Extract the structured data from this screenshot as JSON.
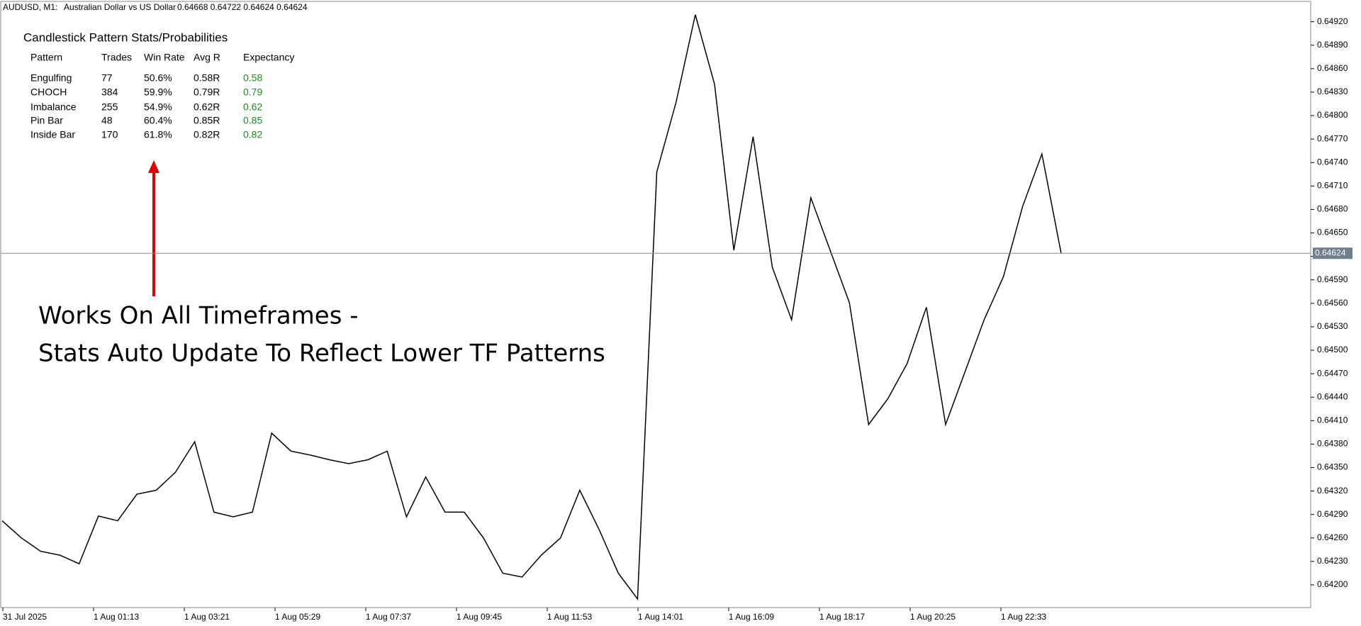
{
  "header": {
    "symbol": "AUDUSD, M1:",
    "description": "Australian Dollar vs US Dollar",
    "ohlc": "0.64668 0.64722 0.64624 0.64624"
  },
  "stats": {
    "title": "Candlestick Pattern Stats/Probabilities",
    "columns": [
      "Pattern",
      "Trades",
      "Win Rate",
      "Avg R",
      "Expectancy"
    ],
    "rows": [
      [
        "Engulfing",
        "77",
        "50.6%",
        "0.58R",
        "0.58"
      ],
      [
        "CHOCH",
        "384",
        "59.9%",
        "0.79R",
        "0.79"
      ],
      [
        "Imbalance",
        "255",
        "54.9%",
        "0.62R",
        "0.62"
      ],
      [
        "Pin Bar",
        "48",
        "60.4%",
        "0.85R",
        "0.85"
      ],
      [
        "Inside Bar",
        "170",
        "61.8%",
        "0.82R",
        "0.82"
      ]
    ]
  },
  "annotation": [
    "Works On All Timeframes -",
    "Stats Auto Update To Reflect Lower TF Patterns"
  ],
  "chart_data": {
    "type": "line",
    "color": "#000000",
    "x_labels": [
      "31 Jul 2025",
      "1 Aug 01:13",
      "1 Aug 03:21",
      "1 Aug 05:29",
      "1 Aug 07:37",
      "1 Aug 09:45",
      "1 Aug 11:53",
      "1 Aug 14:01",
      "1 Aug 16:09",
      "1 Aug 18:17",
      "1 Aug 20:25",
      "1 Aug 22:33"
    ],
    "values": [
      0.64282,
      0.6426,
      0.64243,
      0.64238,
      0.64227,
      0.64288,
      0.64282,
      0.64316,
      0.64321,
      0.64344,
      0.64383,
      0.64293,
      0.64287,
      0.64293,
      0.64394,
      0.64371,
      0.64366,
      0.6436,
      0.64355,
      0.6436,
      0.64371,
      0.64287,
      0.64338,
      0.64293,
      0.64293,
      0.6426,
      0.64215,
      0.6421,
      0.64238,
      0.6426,
      0.64321,
      0.64271,
      0.64215,
      0.64182,
      0.64728,
      0.64817,
      0.64929,
      0.6484,
      0.64628,
      0.64773,
      0.64606,
      0.64539,
      0.64695,
      0.64628,
      0.64561,
      0.64405,
      0.64438,
      0.64483,
      0.64555,
      0.64405,
      0.64472,
      0.64539,
      0.64594,
      0.64684,
      0.64751,
      0.64624
    ],
    "ylim": [
      0.64171,
      0.64946
    ],
    "yticks": [
      {
        "value": 0.642,
        "label": "0.64200"
      },
      {
        "value": 0.6423,
        "label": "0.64230"
      },
      {
        "value": 0.6426,
        "label": "0.64260"
      },
      {
        "value": 0.6429,
        "label": "0.64290"
      },
      {
        "value": 0.6432,
        "label": "0.64320"
      },
      {
        "value": 0.6435,
        "label": "0.64350"
      },
      {
        "value": 0.6438,
        "label": "0.64380"
      },
      {
        "value": 0.6441,
        "label": "0.64410"
      },
      {
        "value": 0.6444,
        "label": "0.64440"
      },
      {
        "value": 0.6447,
        "label": "0.64470"
      },
      {
        "value": 0.645,
        "label": "0.64500"
      },
      {
        "value": 0.6453,
        "label": "0.64530"
      },
      {
        "value": 0.6456,
        "label": "0.64560"
      },
      {
        "value": 0.6459,
        "label": "0.64590"
      },
      {
        "value": 0.6462,
        "label": "0.64620"
      },
      {
        "value": 0.6465,
        "label": "0.64650"
      },
      {
        "value": 0.6468,
        "label": "0.64680"
      },
      {
        "value": 0.6471,
        "label": "0.64710"
      },
      {
        "value": 0.6474,
        "label": "0.64740"
      },
      {
        "value": 0.6477,
        "label": "0.64770"
      },
      {
        "value": 0.648,
        "label": "0.64800"
      },
      {
        "value": 0.6483,
        "label": "0.64830"
      },
      {
        "value": 0.6486,
        "label": "0.64860"
      },
      {
        "value": 0.6489,
        "label": "0.64890"
      },
      {
        "value": 0.6492,
        "label": "0.64920"
      }
    ],
    "current_price": {
      "value": 0.64624,
      "label": "0.64624"
    }
  }
}
